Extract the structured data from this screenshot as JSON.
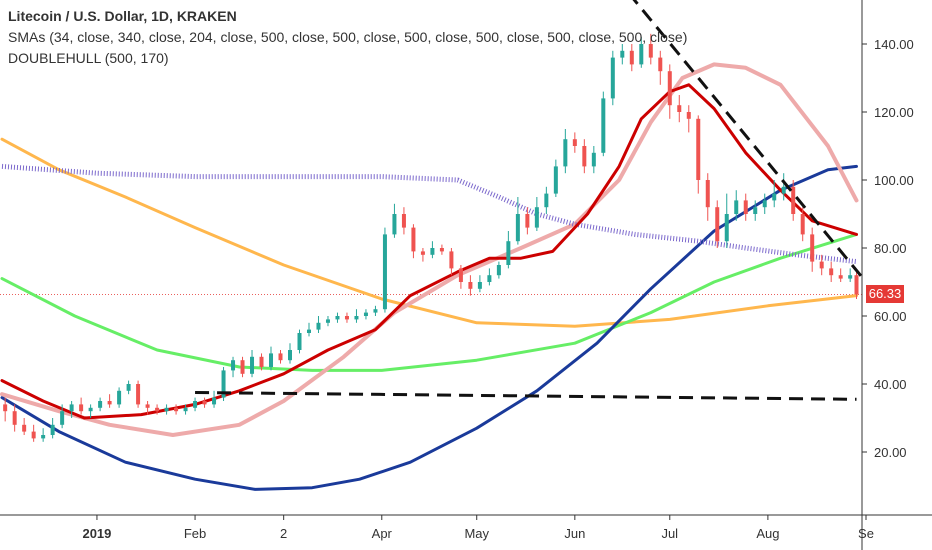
{
  "legend": {
    "title": "Litecoin / U.S. Dollar, 1D, KRAKEN",
    "line2": "SMAs (34, close, 340, close, 204, close, 500, close, 500, close, 500, close, 500, close, 500, close, 500, close)",
    "line3": "DOUBLEHULL (500, 170)"
  },
  "current_price": {
    "label": "66.33",
    "value": 66.33,
    "color": "#e53935"
  },
  "chart_data": {
    "type": "line",
    "title": "Litecoin / U.S. Dollar, 1D, KRAKEN",
    "xlabel": "",
    "ylabel": "",
    "x_ticks": [
      {
        "label": "2019",
        "date": "2019-01-01",
        "bold": true
      },
      {
        "label": "Feb",
        "date": "2019-02-01",
        "bold": false
      },
      {
        "label": "2",
        "date": "2019-03-01",
        "bold": false
      },
      {
        "label": "Apr",
        "date": "2019-04-01",
        "bold": false
      },
      {
        "label": "May",
        "date": "2019-05-01",
        "bold": false
      },
      {
        "label": "Jun",
        "date": "2019-06-01",
        "bold": false
      },
      {
        "label": "Jul",
        "date": "2019-07-01",
        "bold": false
      },
      {
        "label": "Aug",
        "date": "2019-08-01",
        "bold": false
      },
      {
        "label": "Se",
        "date": "2019-09-01",
        "bold": false
      }
    ],
    "xlim": [
      "2018-12-02",
      "2019-09-01"
    ],
    "y_ticks": [
      20,
      40,
      60,
      80,
      100,
      120,
      140
    ],
    "y_tick_labels": [
      "20.00",
      "40.00",
      "60.00",
      "80.00",
      "100.00",
      "120.00",
      "140.00"
    ],
    "ylim": [
      0,
      151
    ],
    "grid": false,
    "colors": {
      "up": "#26a69a",
      "down": "#ef5350",
      "sma34": "#cc0000",
      "sma_pink": "#eeaaaa",
      "sma_orange": "#ffb74d",
      "sma_green": "#66ee66",
      "sma_navy": "#1a3a9a",
      "hull_purple": "#7b68cc",
      "trend": "#111111",
      "price_line": "#e53935"
    },
    "series": [
      {
        "key": "sma_orange",
        "color": "#ffb74d",
        "points": [
          [
            "2018-12-02",
            112
          ],
          [
            "2018-12-20",
            103
          ],
          [
            "2019-01-10",
            95
          ],
          [
            "2019-02-01",
            86
          ],
          [
            "2019-03-01",
            75
          ],
          [
            "2019-04-01",
            65
          ],
          [
            "2019-05-01",
            58
          ],
          [
            "2019-06-01",
            57
          ],
          [
            "2019-07-01",
            59
          ],
          [
            "2019-08-01",
            63
          ],
          [
            "2019-08-29",
            66
          ]
        ]
      },
      {
        "key": "sma_green",
        "color": "#66ee66",
        "points": [
          [
            "2018-12-02",
            71
          ],
          [
            "2018-12-25",
            60
          ],
          [
            "2019-01-20",
            50
          ],
          [
            "2019-02-15",
            45
          ],
          [
            "2019-03-10",
            44
          ],
          [
            "2019-04-01",
            44
          ],
          [
            "2019-05-01",
            47
          ],
          [
            "2019-06-01",
            52
          ],
          [
            "2019-06-25",
            61
          ],
          [
            "2019-07-15",
            70
          ],
          [
            "2019-08-05",
            77
          ],
          [
            "2019-08-29",
            84
          ]
        ]
      },
      {
        "key": "sma_navy",
        "color": "#1a3a9a",
        "points": [
          [
            "2018-12-02",
            36
          ],
          [
            "2018-12-20",
            26
          ],
          [
            "2019-01-10",
            17
          ],
          [
            "2019-02-01",
            12
          ],
          [
            "2019-02-20",
            9
          ],
          [
            "2019-03-10",
            9.5
          ],
          [
            "2019-03-25",
            12
          ],
          [
            "2019-04-10",
            17
          ],
          [
            "2019-05-01",
            27
          ],
          [
            "2019-05-20",
            38
          ],
          [
            "2019-06-08",
            52
          ],
          [
            "2019-06-25",
            68
          ],
          [
            "2019-07-15",
            85
          ],
          [
            "2019-08-05",
            97
          ],
          [
            "2019-08-20",
            103
          ],
          [
            "2019-08-29",
            104
          ]
        ]
      },
      {
        "key": "sma_pink",
        "color": "#eeaaaa",
        "points": [
          [
            "2018-12-02",
            37
          ],
          [
            "2018-12-20",
            32
          ],
          [
            "2019-01-05",
            28
          ],
          [
            "2019-01-25",
            25
          ],
          [
            "2019-02-15",
            28
          ],
          [
            "2019-03-01",
            35
          ],
          [
            "2019-03-20",
            48
          ],
          [
            "2019-04-05",
            61
          ],
          [
            "2019-04-25",
            72
          ],
          [
            "2019-05-15",
            80
          ],
          [
            "2019-06-01",
            87
          ],
          [
            "2019-06-15",
            100
          ],
          [
            "2019-06-25",
            117
          ],
          [
            "2019-07-05",
            130
          ],
          [
            "2019-07-15",
            134
          ],
          [
            "2019-07-25",
            133
          ],
          [
            "2019-08-05",
            128
          ],
          [
            "2019-08-20",
            110
          ],
          [
            "2019-08-29",
            94
          ]
        ]
      },
      {
        "key": "hull_purple",
        "color": "#7b68cc",
        "points": [
          [
            "2018-12-02",
            104
          ],
          [
            "2019-01-01",
            102
          ],
          [
            "2019-02-01",
            101
          ],
          [
            "2019-03-01",
            101
          ],
          [
            "2019-04-01",
            101
          ],
          [
            "2019-04-25",
            100
          ],
          [
            "2019-05-08",
            95
          ],
          [
            "2019-05-20",
            90
          ],
          [
            "2019-06-01",
            87
          ],
          [
            "2019-06-20",
            84
          ],
          [
            "2019-07-10",
            82
          ],
          [
            "2019-07-25",
            80
          ],
          [
            "2019-08-10",
            78
          ],
          [
            "2019-08-29",
            76
          ]
        ]
      },
      {
        "key": "sma34",
        "color": "#cc0000",
        "points": [
          [
            "2018-12-02",
            41
          ],
          [
            "2018-12-15",
            35
          ],
          [
            "2018-12-28",
            30
          ],
          [
            "2019-01-15",
            31
          ],
          [
            "2019-02-01",
            34
          ],
          [
            "2019-02-15",
            38
          ],
          [
            "2019-03-01",
            43
          ],
          [
            "2019-03-15",
            50
          ],
          [
            "2019-03-30",
            56
          ],
          [
            "2019-04-10",
            66
          ],
          [
            "2019-04-25",
            73
          ],
          [
            "2019-05-05",
            77
          ],
          [
            "2019-05-15",
            77
          ],
          [
            "2019-05-25",
            79
          ],
          [
            "2019-06-05",
            90
          ],
          [
            "2019-06-15",
            104
          ],
          [
            "2019-06-22",
            118
          ],
          [
            "2019-07-01",
            126
          ],
          [
            "2019-07-07",
            128
          ],
          [
            "2019-07-15",
            121
          ],
          [
            "2019-07-25",
            108
          ],
          [
            "2019-08-05",
            97
          ],
          [
            "2019-08-15",
            88
          ],
          [
            "2019-08-29",
            84
          ]
        ]
      }
    ],
    "candles": [
      [
        "2018-12-03",
        34,
        32,
        36,
        29
      ],
      [
        "2018-12-06",
        32,
        28,
        34,
        26
      ],
      [
        "2018-12-09",
        28,
        26,
        30,
        25
      ],
      [
        "2018-12-12",
        26,
        24,
        28,
        23
      ],
      [
        "2018-12-15",
        24,
        25,
        27,
        23
      ],
      [
        "2018-12-18",
        25,
        28,
        30,
        24
      ],
      [
        "2018-12-21",
        28,
        32,
        34,
        27
      ],
      [
        "2018-12-24",
        32,
        34,
        35,
        30
      ],
      [
        "2018-12-27",
        34,
        32,
        36,
        31
      ],
      [
        "2018-12-30",
        32,
        33,
        34,
        30
      ],
      [
        "2019-01-02",
        33,
        35,
        36,
        32
      ],
      [
        "2019-01-05",
        35,
        34,
        37,
        33
      ],
      [
        "2019-01-08",
        34,
        38,
        39,
        33
      ],
      [
        "2019-01-11",
        38,
        40,
        41,
        37
      ],
      [
        "2019-01-14",
        40,
        34,
        41,
        33
      ],
      [
        "2019-01-17",
        34,
        33,
        35,
        31
      ],
      [
        "2019-01-20",
        33,
        32,
        34,
        31
      ],
      [
        "2019-01-23",
        32,
        33,
        34,
        31
      ],
      [
        "2019-01-26",
        33,
        32,
        34,
        31
      ],
      [
        "2019-01-29",
        32,
        33,
        34,
        31
      ],
      [
        "2019-02-01",
        33,
        35,
        36,
        32
      ],
      [
        "2019-02-04",
        35,
        34,
        36,
        33
      ],
      [
        "2019-02-07",
        34,
        36,
        38,
        33
      ],
      [
        "2019-02-10",
        36,
        44,
        45,
        35
      ],
      [
        "2019-02-13",
        44,
        47,
        48,
        42
      ],
      [
        "2019-02-16",
        47,
        43,
        48,
        42
      ],
      [
        "2019-02-19",
        43,
        48,
        50,
        42
      ],
      [
        "2019-02-22",
        48,
        45,
        49,
        44
      ],
      [
        "2019-02-25",
        45,
        49,
        51,
        44
      ],
      [
        "2019-02-28",
        49,
        47,
        50,
        46
      ],
      [
        "2019-03-03",
        47,
        50,
        52,
        46
      ],
      [
        "2019-03-06",
        50,
        55,
        56,
        49
      ],
      [
        "2019-03-09",
        55,
        56,
        58,
        54
      ],
      [
        "2019-03-12",
        56,
        58,
        60,
        55
      ],
      [
        "2019-03-15",
        58,
        59,
        60,
        57
      ],
      [
        "2019-03-18",
        59,
        60,
        61,
        58
      ],
      [
        "2019-03-21",
        60,
        59,
        61,
        58
      ],
      [
        "2019-03-24",
        59,
        60,
        62,
        58
      ],
      [
        "2019-03-27",
        60,
        61,
        62,
        59
      ],
      [
        "2019-03-30",
        61,
        62,
        63,
        60
      ],
      [
        "2019-04-02",
        62,
        84,
        86,
        61
      ],
      [
        "2019-04-05",
        84,
        90,
        93,
        83
      ],
      [
        "2019-04-08",
        90,
        86,
        92,
        84
      ],
      [
        "2019-04-11",
        86,
        79,
        87,
        77
      ],
      [
        "2019-04-14",
        79,
        78,
        80,
        76
      ],
      [
        "2019-04-17",
        78,
        80,
        82,
        77
      ],
      [
        "2019-04-20",
        80,
        79,
        81,
        78
      ],
      [
        "2019-04-23",
        79,
        74,
        80,
        72
      ],
      [
        "2019-04-26",
        74,
        70,
        75,
        68
      ],
      [
        "2019-04-29",
        70,
        68,
        72,
        66
      ],
      [
        "2019-05-02",
        68,
        70,
        72,
        67
      ],
      [
        "2019-05-05",
        70,
        72,
        74,
        69
      ],
      [
        "2019-05-08",
        72,
        75,
        76,
        71
      ],
      [
        "2019-05-11",
        75,
        82,
        85,
        74
      ],
      [
        "2019-05-14",
        82,
        90,
        95,
        81
      ],
      [
        "2019-05-17",
        90,
        86,
        92,
        84
      ],
      [
        "2019-05-20",
        86,
        92,
        95,
        85
      ],
      [
        "2019-05-23",
        92,
        96,
        98,
        90
      ],
      [
        "2019-05-26",
        96,
        104,
        106,
        95
      ],
      [
        "2019-05-29",
        104,
        112,
        115,
        102
      ],
      [
        "2019-06-01",
        112,
        110,
        114,
        108
      ],
      [
        "2019-06-04",
        110,
        104,
        112,
        102
      ],
      [
        "2019-06-07",
        104,
        108,
        110,
        102
      ],
      [
        "2019-06-10",
        108,
        124,
        126,
        107
      ],
      [
        "2019-06-13",
        124,
        136,
        138,
        122
      ],
      [
        "2019-06-16",
        136,
        138,
        140,
        134
      ],
      [
        "2019-06-19",
        138,
        134,
        140,
        132
      ],
      [
        "2019-06-22",
        134,
        140,
        142,
        133
      ],
      [
        "2019-06-25",
        140,
        136,
        143,
        134
      ],
      [
        "2019-06-28",
        136,
        132,
        138,
        128
      ],
      [
        "2019-07-01",
        132,
        122,
        134,
        118
      ],
      [
        "2019-07-04",
        122,
        120,
        125,
        117
      ],
      [
        "2019-07-07",
        120,
        118,
        122,
        114
      ],
      [
        "2019-07-10",
        118,
        100,
        119,
        96
      ],
      [
        "2019-07-13",
        100,
        92,
        102,
        88
      ],
      [
        "2019-07-16",
        92,
        82,
        94,
        80
      ],
      [
        "2019-07-19",
        82,
        90,
        96,
        80
      ],
      [
        "2019-07-22",
        90,
        94,
        97,
        88
      ],
      [
        "2019-07-25",
        94,
        90,
        96,
        88
      ],
      [
        "2019-07-28",
        90,
        92,
        94,
        88
      ],
      [
        "2019-07-31",
        92,
        94,
        96,
        90
      ],
      [
        "2019-08-03",
        94,
        96,
        100,
        92
      ],
      [
        "2019-08-06",
        96,
        98,
        102,
        94
      ],
      [
        "2019-08-09",
        98,
        90,
        100,
        88
      ],
      [
        "2019-08-12",
        90,
        84,
        92,
        82
      ],
      [
        "2019-08-15",
        84,
        76,
        86,
        73
      ],
      [
        "2019-08-18",
        76,
        74,
        78,
        72
      ],
      [
        "2019-08-21",
        74,
        72,
        76,
        70
      ],
      [
        "2019-08-24",
        72,
        71,
        74,
        70
      ],
      [
        "2019-08-27",
        71,
        72,
        74,
        70
      ],
      [
        "2019-08-29",
        72,
        66.33,
        73,
        65
      ]
    ],
    "dashed_lines": [
      {
        "start": [
          "2019-02-01",
          37.5
        ],
        "end": [
          "2019-08-29",
          35.5
        ]
      },
      {
        "start": [
          "2019-06-18",
          155
        ],
        "end": [
          "2019-09-01",
          70
        ]
      }
    ]
  }
}
